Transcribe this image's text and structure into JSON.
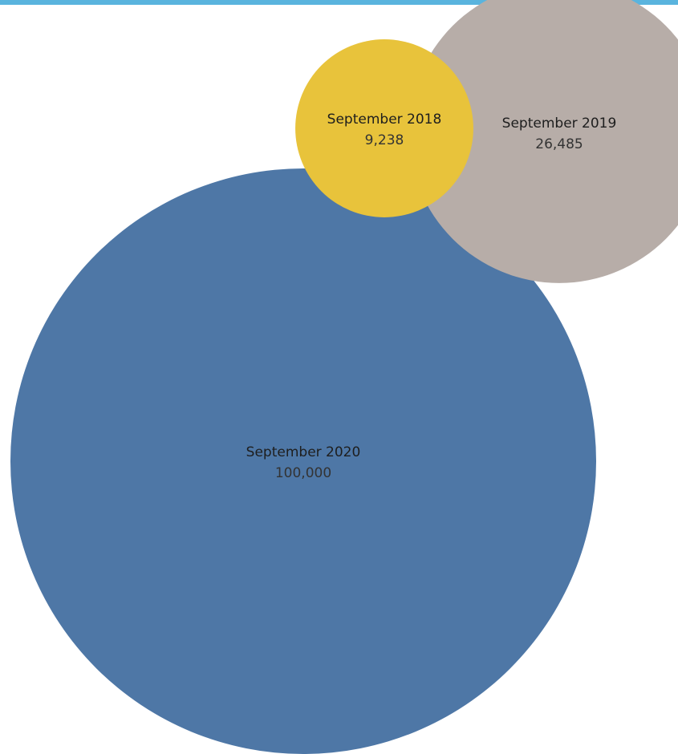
{
  "chart_data": {
    "type": "bubble",
    "title": "",
    "categories": [
      "September 2018",
      "September 2019",
      "September 2020"
    ],
    "values": [
      9238,
      26485,
      100000
    ],
    "value_labels": [
      "9,238",
      "26,485",
      "100,000"
    ],
    "colors": [
      "#e8c33b",
      "#b7ada8",
      "#4e77a6"
    ],
    "legend": "none"
  },
  "frame": {
    "accent_color": "#5ab4de"
  }
}
